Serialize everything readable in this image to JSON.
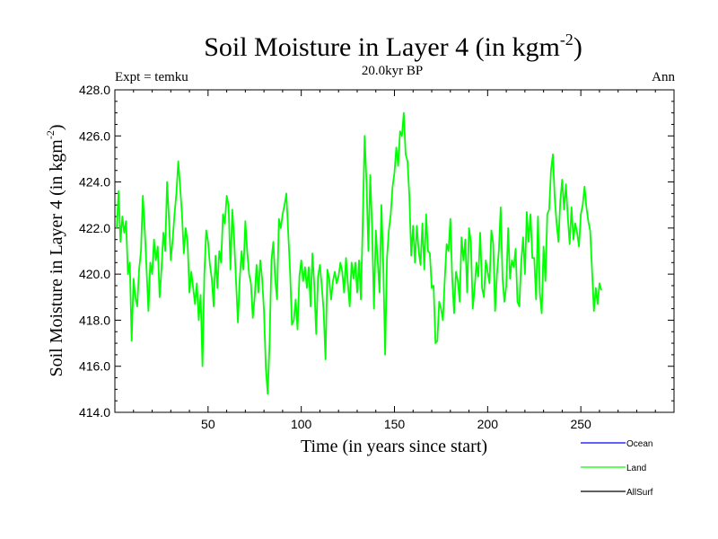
{
  "chart_data": {
    "type": "line",
    "title_main": "Soil Moisture in Layer 4 (in kgm",
    "title_sup": "-2",
    "title_close": ")",
    "subtitle": "20.0kyr BP",
    "left_label": "Expt = temku",
    "right_label": "Ann",
    "xlabel": "Time (in years since start)",
    "ylabel_main": "Soil Moisture in Layer 4 (in kgm",
    "ylabel_sup": "-2",
    "ylabel_close": ")",
    "xlim": [
      0,
      300
    ],
    "ylim": [
      414,
      428
    ],
    "x_ticks": [
      50,
      100,
      150,
      200,
      250
    ],
    "x_tick_labels": [
      "50",
      "100",
      "150",
      "200",
      "250"
    ],
    "y_ticks": [
      414,
      416,
      418,
      420,
      422,
      424,
      426,
      428
    ],
    "y_tick_labels": [
      "414.0",
      "416.0",
      "418.0",
      "420.0",
      "422.0",
      "424.0",
      "426.0",
      "428.0"
    ],
    "legend": [
      {
        "name": "Ocean",
        "color": "#0000ff"
      },
      {
        "name": "Land",
        "color": "#00ff00"
      },
      {
        "name": "AllSurf",
        "color": "#000000"
      }
    ],
    "series": [
      {
        "name": "Land",
        "color": "#00ff00",
        "x_start": 1,
        "x_step": 1,
        "values": [
          422.0,
          423.6,
          421.4,
          422.5,
          421.8,
          422.3,
          420.0,
          420.5,
          417.1,
          419.8,
          419.0,
          418.6,
          420.2,
          421.0,
          423.4,
          422.0,
          420.2,
          418.4,
          420.5,
          420.0,
          421.5,
          420.6,
          421.2,
          419.0,
          420.2,
          421.8,
          421.0,
          424.0,
          422.4,
          420.6,
          421.5,
          422.6,
          423.5,
          424.9,
          423.8,
          422.6,
          420.9,
          422.0,
          421.4,
          419.2,
          420.1,
          419.4,
          418.7,
          419.6,
          418.0,
          419.1,
          416.0,
          420.0,
          421.9,
          421.4,
          420.4,
          419.8,
          418.6,
          420.8,
          419.4,
          421.0,
          420.5,
          422.6,
          422.2,
          423.4,
          423.0,
          420.2,
          422.8,
          421.5,
          419.7,
          417.9,
          419.8,
          421.0,
          420.2,
          422.3,
          421.0,
          420.0,
          419.6,
          418.1,
          419.0,
          420.4,
          419.2,
          420.6,
          419.8,
          418.4,
          415.9,
          414.8,
          417.0,
          420.6,
          421.4,
          419.8,
          418.9,
          422.4,
          422.0,
          422.6,
          423.0,
          423.5,
          421.8,
          420.1,
          417.8,
          418.0,
          418.9,
          417.6,
          419.9,
          420.6,
          419.7,
          420.3,
          419.4,
          420.3,
          418.6,
          420.9,
          419.5,
          417.4,
          419.9,
          420.4,
          419.5,
          418.4,
          416.3,
          420.2,
          419.8,
          418.9,
          419.7,
          420.1,
          419.6,
          419.9,
          420.5,
          420.1,
          419.2,
          420.7,
          419.6,
          418.6,
          420.5,
          419.8,
          420.5,
          419.2,
          420.6,
          418.9,
          422.3,
          426.0,
          424.0,
          421.0,
          424.3,
          422.0,
          418.5,
          421.9,
          420.6,
          419.2,
          423.0,
          420.4,
          416.5,
          420.7,
          421.9,
          422.6,
          423.8,
          424.4,
          425.5,
          424.7,
          426.2,
          426.0,
          427.0,
          425.2,
          424.9,
          423.4,
          420.8,
          422.1,
          420.5,
          422.1,
          421.0,
          420.4,
          422.2,
          420.2,
          422.6,
          421.0,
          420.9,
          419.4,
          419.5,
          417.0,
          417.1,
          418.8,
          418.5,
          418.0,
          419.8,
          421.3,
          421.0,
          422.4,
          419.8,
          418.3,
          420.1,
          419.7,
          418.8,
          421.6,
          420.6,
          421.5,
          419.2,
          422.0,
          421.4,
          418.5,
          419.4,
          420.5,
          419.9,
          421.8,
          419.4,
          419.0,
          420.6,
          420.1,
          419.6,
          421.9,
          421.3,
          418.4,
          420.0,
          421.0,
          422.9,
          419.8,
          418.8,
          419.5,
          422.0,
          419.8,
          420.6,
          420.3,
          421.1,
          418.8,
          418.6,
          420.5,
          421.6,
          420.0,
          422.7,
          421.4,
          422.6,
          420.7,
          420.7,
          418.9,
          422.5,
          419.2,
          418.3,
          421.2,
          419.7,
          422.6,
          422.8,
          424.5,
          425.2,
          423.3,
          422.2,
          421.4,
          423.2,
          424.1,
          422.8,
          423.9,
          422.5,
          421.3,
          422.9,
          421.5,
          422.2,
          421.8,
          421.2,
          422.6,
          423.0,
          423.8,
          422.9,
          422.3,
          421.9,
          420.2,
          418.4,
          419.4,
          418.7,
          419.6,
          419.3
        ]
      }
    ]
  }
}
